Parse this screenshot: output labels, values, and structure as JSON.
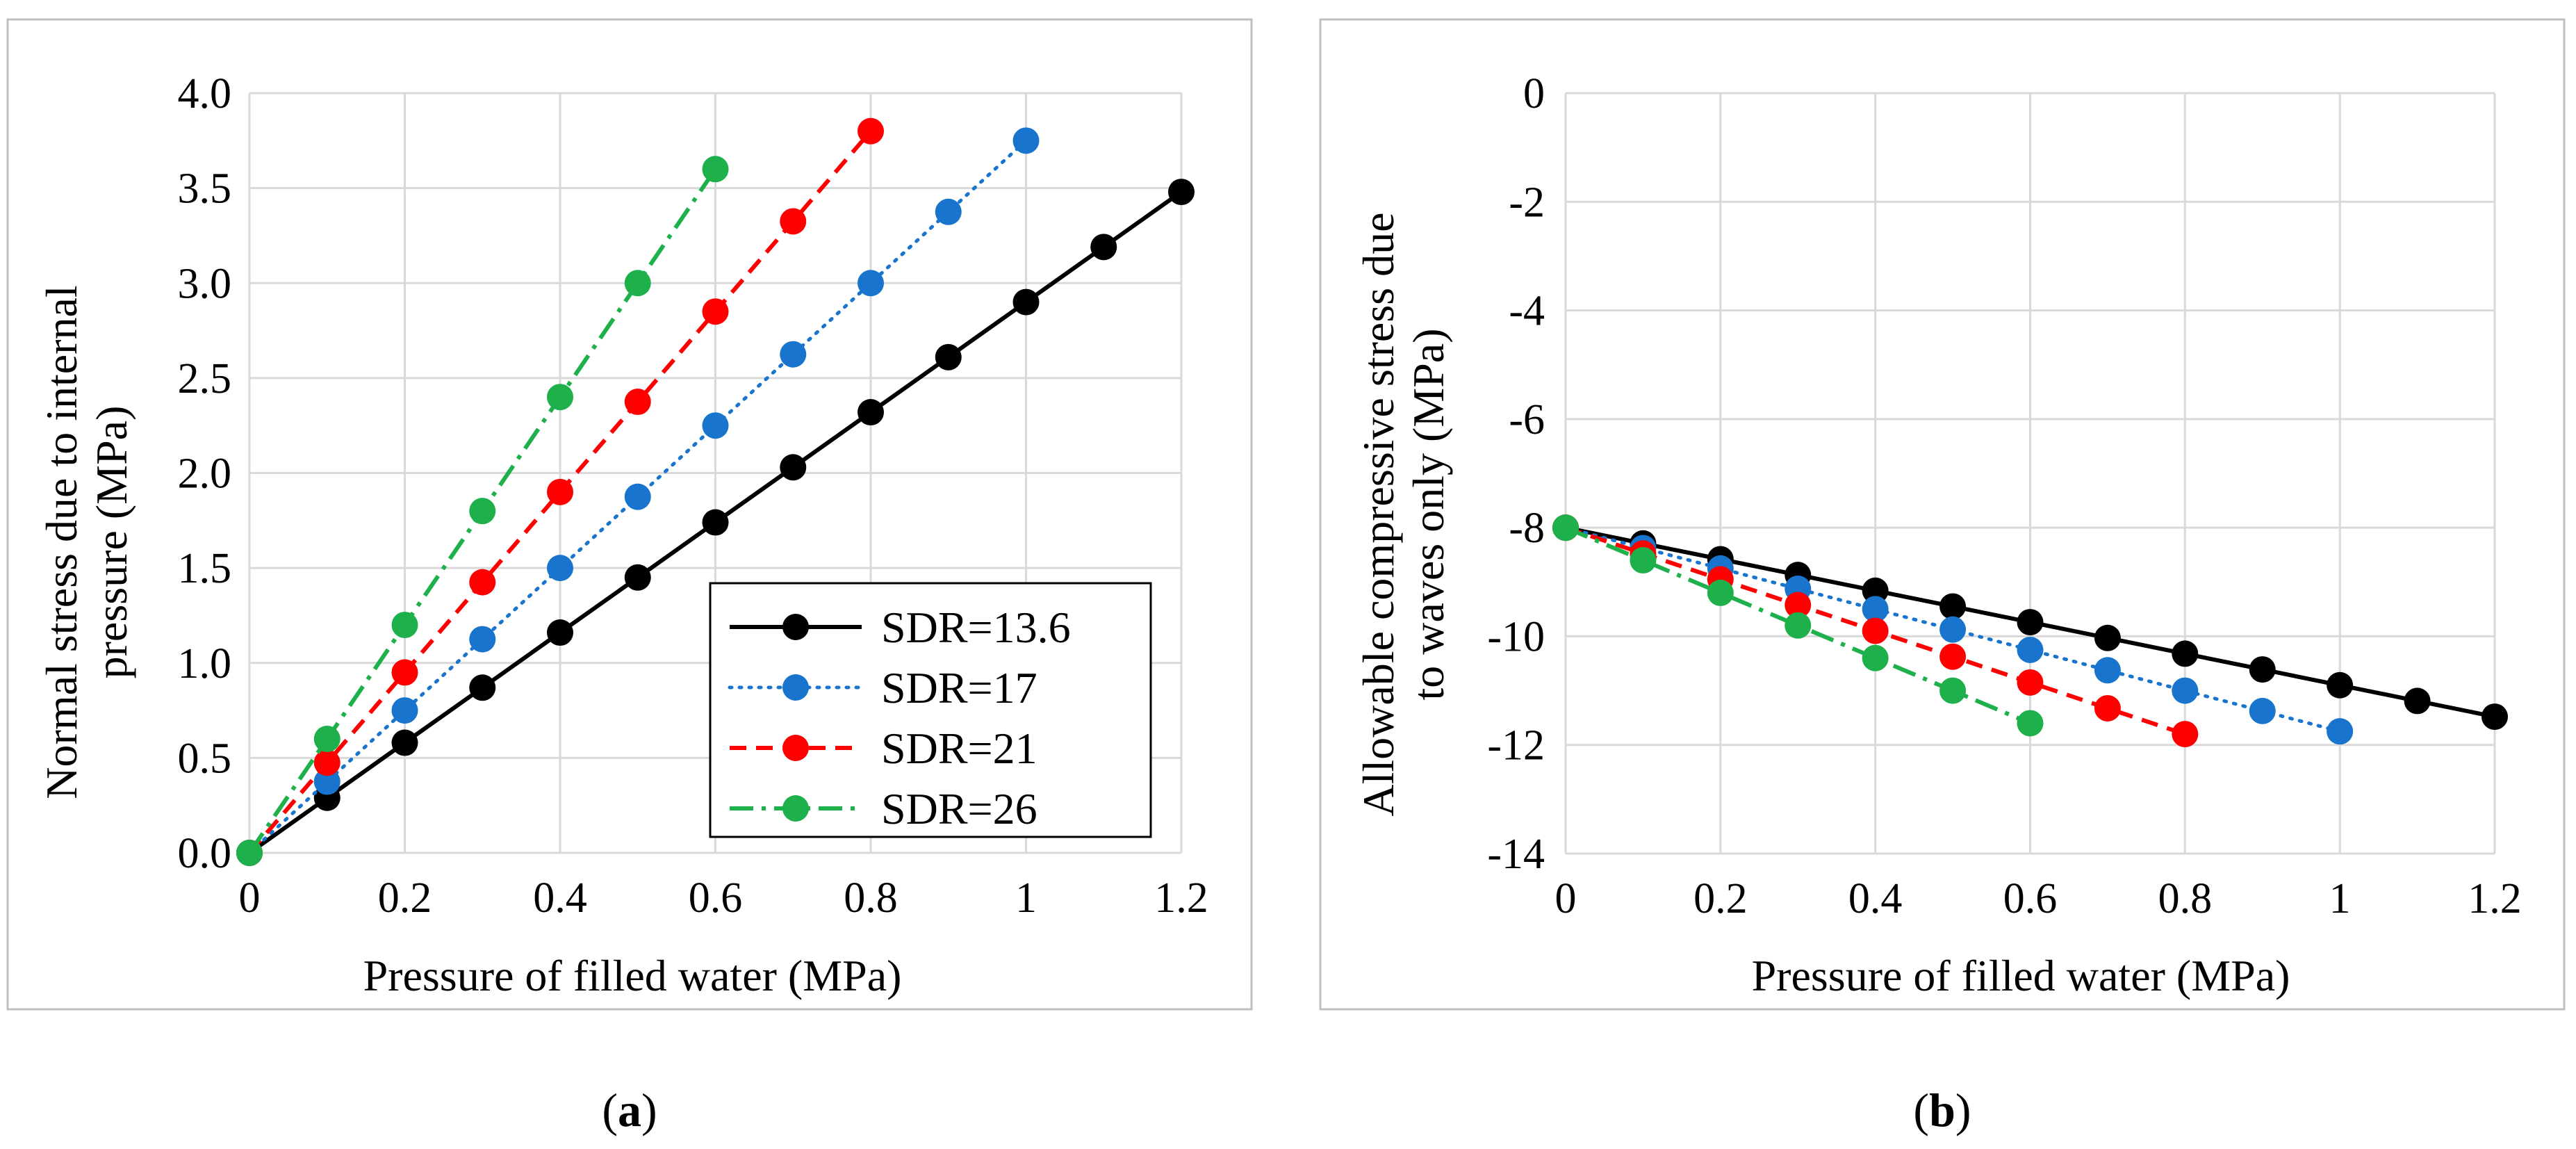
{
  "chart_data": [
    {
      "panel_label": "a",
      "type": "line",
      "title": "",
      "xlabel": "Pressure of filled water (MPa)",
      "ylabel_lines": [
        "Normal stress due to internal",
        "pressure (MPa)"
      ],
      "xlim": [
        0,
        1.2
      ],
      "ylim": [
        0,
        4
      ],
      "xticks": [
        0,
        0.2,
        0.4,
        0.6,
        0.8,
        1,
        1.2
      ],
      "xtick_labels": [
        "0",
        "0.2",
        "0.4",
        "0.6",
        "0.8",
        "1",
        "1.2"
      ],
      "yticks": [
        0,
        0.5,
        1,
        1.5,
        2,
        2.5,
        3,
        3.5,
        4
      ],
      "ytick_labels": [
        "0.0",
        "0.5",
        "1.0",
        "1.5",
        "2.0",
        "2.5",
        "3.0",
        "3.5",
        "4.0"
      ],
      "grid": true,
      "legend_position": "bottom-right",
      "series": [
        {
          "name": "SDR=13.6",
          "color": "#000000",
          "dash": "solid",
          "x": [
            0,
            0.1,
            0.2,
            0.3,
            0.4,
            0.5,
            0.6,
            0.7,
            0.8,
            0.9,
            1.0,
            1.1,
            1.2
          ],
          "y": [
            0,
            0.29,
            0.58,
            0.87,
            1.16,
            1.45,
            1.74,
            2.03,
            2.32,
            2.61,
            2.9,
            3.19,
            3.48
          ]
        },
        {
          "name": "SDR=17",
          "color": "#1874CD",
          "dash": "dot",
          "x": [
            0,
            0.1,
            0.2,
            0.3,
            0.4,
            0.5,
            0.6,
            0.7,
            0.8,
            0.9,
            1.0
          ],
          "y": [
            0,
            0.375,
            0.75,
            1.125,
            1.5,
            1.875,
            2.25,
            2.625,
            3.0,
            3.375,
            3.75
          ]
        },
        {
          "name": "SDR=21",
          "color": "#FF0000",
          "dash": "dash",
          "x": [
            0,
            0.1,
            0.2,
            0.3,
            0.4,
            0.5,
            0.6,
            0.7,
            0.8
          ],
          "y": [
            0,
            0.475,
            0.95,
            1.425,
            1.9,
            2.375,
            2.85,
            3.325,
            3.8
          ]
        },
        {
          "name": "SDR=26",
          "color": "#1DB04B",
          "dash": "dashdot",
          "x": [
            0,
            0.1,
            0.2,
            0.3,
            0.4,
            0.5,
            0.6
          ],
          "y": [
            0,
            0.6,
            1.2,
            1.8,
            2.4,
            3.0,
            3.6
          ]
        }
      ]
    },
    {
      "panel_label": "b",
      "type": "line",
      "title": "",
      "xlabel": "Pressure of filled water (MPa)",
      "ylabel_lines": [
        "Allowable compressive stress due",
        "to waves only (MPa)"
      ],
      "xlim": [
        0,
        1.2
      ],
      "ylim": [
        -14,
        0
      ],
      "xticks": [
        0,
        0.2,
        0.4,
        0.6,
        0.8,
        1,
        1.2
      ],
      "xtick_labels": [
        "0",
        "0.2",
        "0.4",
        "0.6",
        "0.8",
        "1",
        "1.2"
      ],
      "yticks": [
        -14,
        -12,
        -10,
        -8,
        -6,
        -4,
        -2,
        0
      ],
      "ytick_labels": [
        "-14",
        "-12",
        "-10",
        "-8",
        "-6",
        "-4",
        "-2",
        "0"
      ],
      "grid": true,
      "legend_position": "none",
      "series": [
        {
          "name": "SDR=13.6",
          "color": "#000000",
          "dash": "solid",
          "x": [
            0,
            0.1,
            0.2,
            0.3,
            0.4,
            0.5,
            0.6,
            0.7,
            0.8,
            0.9,
            1.0,
            1.1,
            1.2
          ],
          "y": [
            -8.0,
            -8.29,
            -8.58,
            -8.87,
            -9.16,
            -9.45,
            -9.74,
            -10.03,
            -10.32,
            -10.61,
            -10.9,
            -11.19,
            -11.48
          ]
        },
        {
          "name": "SDR=17",
          "color": "#1874CD",
          "dash": "dot",
          "x": [
            0,
            0.1,
            0.2,
            0.3,
            0.4,
            0.5,
            0.6,
            0.7,
            0.8,
            0.9,
            1.0
          ],
          "y": [
            -8.0,
            -8.375,
            -8.75,
            -9.125,
            -9.5,
            -9.875,
            -10.25,
            -10.625,
            -11.0,
            -11.375,
            -11.75
          ]
        },
        {
          "name": "SDR=21",
          "color": "#FF0000",
          "dash": "dash",
          "x": [
            0,
            0.1,
            0.2,
            0.3,
            0.4,
            0.5,
            0.6,
            0.7,
            0.8
          ],
          "y": [
            -8.0,
            -8.475,
            -8.95,
            -9.425,
            -9.9,
            -10.375,
            -10.85,
            -11.325,
            -11.8
          ]
        },
        {
          "name": "SDR=26",
          "color": "#1DB04B",
          "dash": "dashdot",
          "x": [
            0,
            0.1,
            0.2,
            0.3,
            0.4,
            0.5,
            0.6
          ],
          "y": [
            -8.0,
            -8.6,
            -9.2,
            -9.8,
            -10.4,
            -11.0,
            -11.6
          ]
        }
      ]
    }
  ]
}
